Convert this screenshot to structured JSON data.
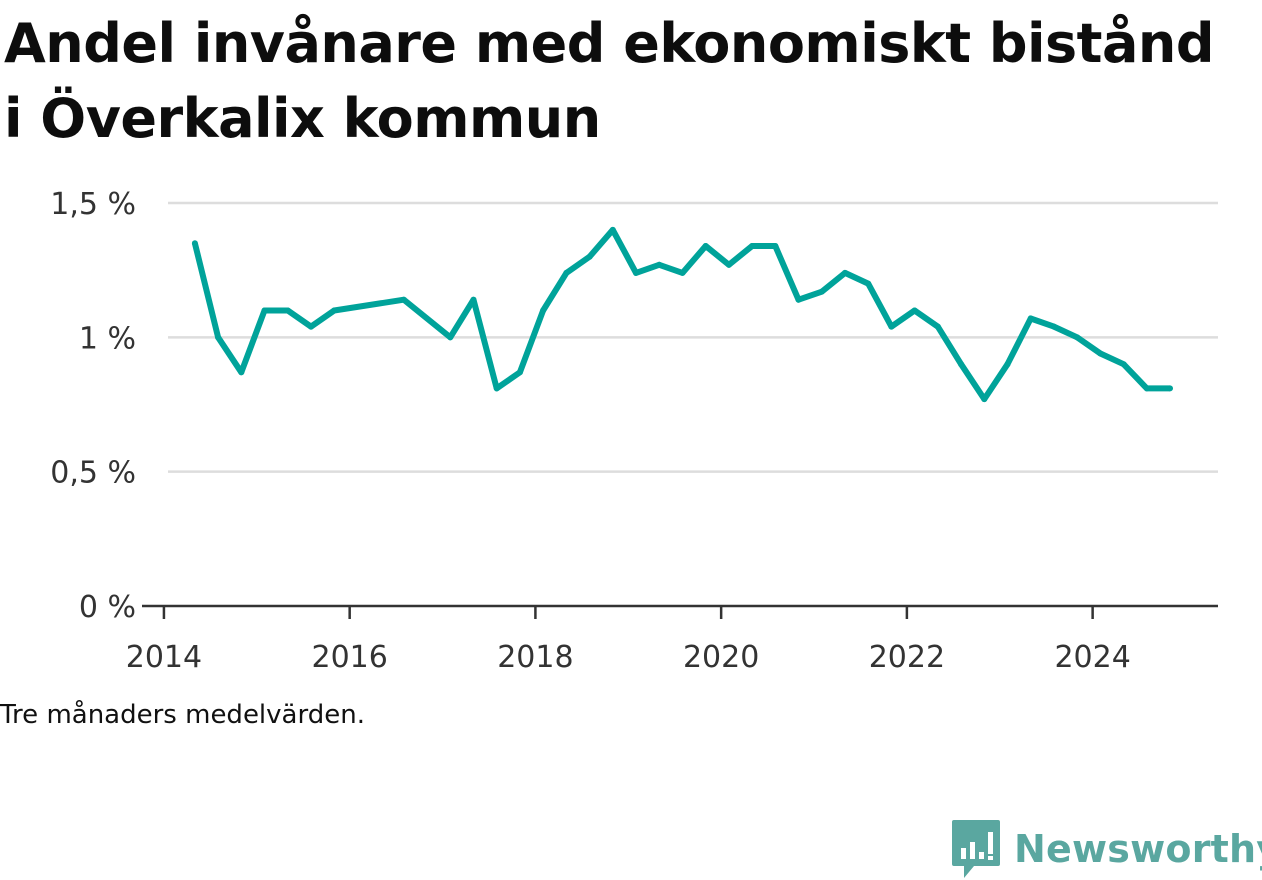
{
  "chart_data": {
    "type": "line",
    "title": "Andel invånare med ekonomiskt bistånd i Överkalix kommun",
    "note": "Tre månaders medelvärden.",
    "y_ticks": [
      {
        "value": 0,
        "label": "0 %"
      },
      {
        "value": 0.5,
        "label": "0,5 %"
      },
      {
        "value": 1.0,
        "label": "1 %"
      },
      {
        "value": 1.5,
        "label": "1,5 %"
      }
    ],
    "x_ticks": [
      {
        "value": 2014,
        "label": "2014"
      },
      {
        "value": 2016,
        "label": "2016"
      },
      {
        "value": 2018,
        "label": "2018"
      },
      {
        "value": 2020,
        "label": "2020"
      },
      {
        "value": 2022,
        "label": "2022"
      },
      {
        "value": 2024,
        "label": "2024"
      }
    ],
    "xlim": [
      2013.85,
      2025.35
    ],
    "ylim": [
      0,
      1.5
    ],
    "grid": true,
    "series": [
      {
        "color": "#00a39a",
        "points": [
          {
            "x": "2014-05",
            "y": 1.35
          },
          {
            "x": "2014-08",
            "y": 1.0
          },
          {
            "x": "2014-11",
            "y": 0.87
          },
          {
            "x": "2015-02",
            "y": 1.1
          },
          {
            "x": "2015-05",
            "y": 1.1
          },
          {
            "x": "2015-08",
            "y": 1.04
          },
          {
            "x": "2015-11",
            "y": 1.1
          },
          {
            "x": "2016-08",
            "y": 1.14
          },
          {
            "x": "2017-02",
            "y": 1.0
          },
          {
            "x": "2017-05",
            "y": 1.14
          },
          {
            "x": "2017-08",
            "y": 0.81
          },
          {
            "x": "2017-11",
            "y": 0.87
          },
          {
            "x": "2018-02",
            "y": 1.1
          },
          {
            "x": "2018-05",
            "y": 1.24
          },
          {
            "x": "2018-08",
            "y": 1.3
          },
          {
            "x": "2018-11",
            "y": 1.4
          },
          {
            "x": "2019-02",
            "y": 1.24
          },
          {
            "x": "2019-05",
            "y": 1.27
          },
          {
            "x": "2019-08",
            "y": 1.24
          },
          {
            "x": "2019-11",
            "y": 1.34
          },
          {
            "x": "2020-02",
            "y": 1.27
          },
          {
            "x": "2020-05",
            "y": 1.34
          },
          {
            "x": "2020-08",
            "y": 1.34
          },
          {
            "x": "2020-11",
            "y": 1.14
          },
          {
            "x": "2021-02",
            "y": 1.17
          },
          {
            "x": "2021-05",
            "y": 1.24
          },
          {
            "x": "2021-08",
            "y": 1.2
          },
          {
            "x": "2021-11",
            "y": 1.04
          },
          {
            "x": "2022-02",
            "y": 1.1
          },
          {
            "x": "2022-05",
            "y": 1.04
          },
          {
            "x": "2022-08",
            "y": 0.9
          },
          {
            "x": "2022-11",
            "y": 0.77
          },
          {
            "x": "2023-02",
            "y": 0.9
          },
          {
            "x": "2023-05",
            "y": 1.07
          },
          {
            "x": "2023-08",
            "y": 1.04
          },
          {
            "x": "2023-11",
            "y": 1.0
          },
          {
            "x": "2024-02",
            "y": 0.94
          },
          {
            "x": "2024-05",
            "y": 0.9
          },
          {
            "x": "2024-08",
            "y": 0.81
          },
          {
            "x": "2024-11",
            "y": 0.81
          }
        ]
      }
    ]
  },
  "brand": {
    "name": "Newsworthy",
    "color": "#5aa7a0",
    "icon": "newsworthy-logo-icon"
  },
  "colors": {
    "grid": "#dddddd",
    "axis": "#333333",
    "tick_label": "#333333"
  }
}
